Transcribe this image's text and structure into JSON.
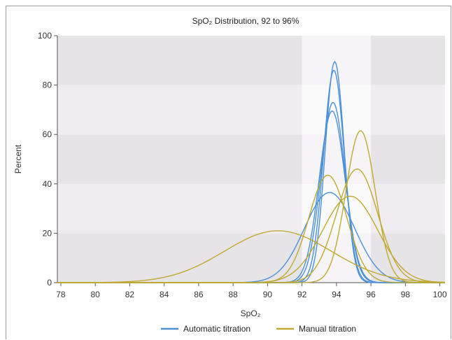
{
  "chart_data": {
    "type": "line",
    "title": "SpO₂ Distribution, 92 to 96%",
    "xlabel": "SpO₂",
    "ylabel": "Percent",
    "xlim": [
      77.8,
      100.3
    ],
    "ylim": [
      0,
      100
    ],
    "xticks": [
      78,
      80,
      82,
      84,
      86,
      88,
      90,
      92,
      94,
      96,
      98,
      100
    ],
    "yticks": [
      0,
      20,
      40,
      60,
      80,
      100
    ],
    "target_band": [
      92,
      96
    ],
    "legend_position": "bottom",
    "colors": {
      "automatic": "#4a90d9",
      "manual": "#bfa930"
    },
    "series": [
      {
        "name": "Automatic titration",
        "group": "automatic",
        "peak": [
          93.9,
          89.5
        ],
        "width": 0.55
      },
      {
        "name": "Automatic titration",
        "group": "automatic",
        "peak": [
          93.85,
          86
        ],
        "width": 0.6
      },
      {
        "name": "Automatic titration",
        "group": "automatic",
        "peak": [
          93.8,
          73
        ],
        "width": 0.7
      },
      {
        "name": "Automatic titration",
        "group": "automatic",
        "peak": [
          93.75,
          69.5
        ],
        "width": 0.75
      },
      {
        "name": "Automatic titration",
        "group": "automatic",
        "peak": [
          93.6,
          36.5
        ],
        "width": 1.45
      },
      {
        "name": "Manual titration",
        "group": "manual",
        "peak": [
          95.4,
          61.5
        ],
        "width": 0.85
      },
      {
        "name": "Manual titration",
        "group": "manual",
        "peak": [
          95.2,
          46
        ],
        "width": 1.2
      },
      {
        "name": "Manual titration",
        "group": "manual",
        "peak": [
          93.5,
          43.5
        ],
        "width": 1.1
      },
      {
        "name": "Manual titration",
        "group": "manual",
        "peak": [
          94.8,
          35
        ],
        "width": 1.6
      },
      {
        "name": "Manual titration",
        "group": "manual",
        "peak": [
          90.6,
          21
        ],
        "width": 3.1
      }
    ],
    "legend": [
      {
        "label": "Automatic titration",
        "color": "#4a90d9"
      },
      {
        "label": "Manual titration",
        "color": "#bfa930"
      }
    ]
  }
}
